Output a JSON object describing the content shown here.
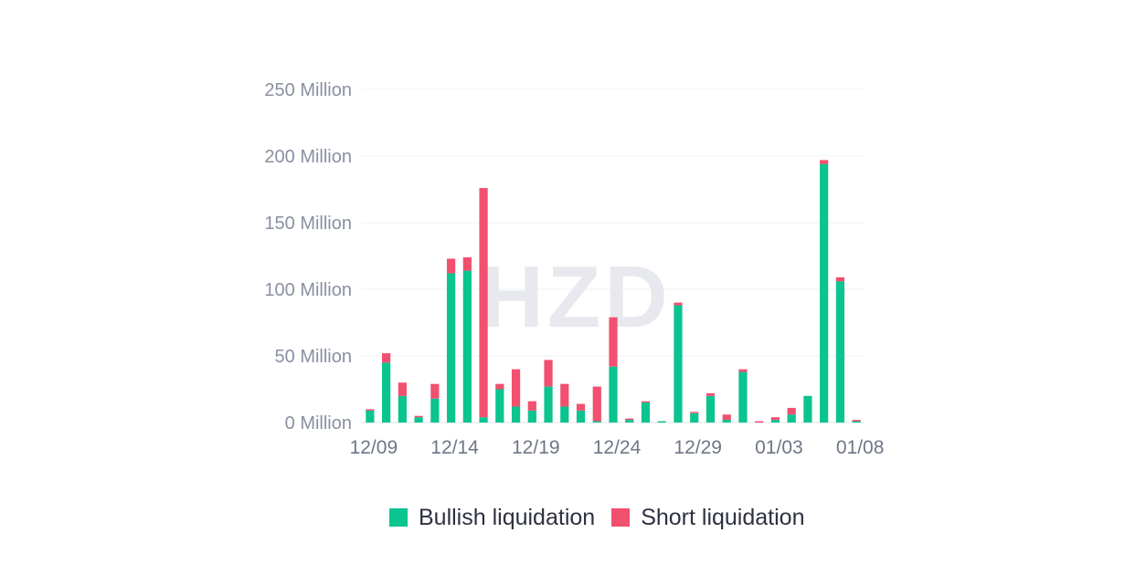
{
  "chart_data": {
    "type": "bar",
    "stacked": true,
    "watermark": "HZD",
    "y_ticks": [
      "0 Million",
      "50 Million",
      "100 Million",
      "150 Million",
      "200 Million",
      "250 Million"
    ],
    "ylim": [
      0,
      250
    ],
    "x_ticks": [
      "12/09",
      "12/14",
      "12/19",
      "12/24",
      "12/29",
      "01/03",
      "01/08"
    ],
    "categories": [
      "12/09",
      "12/10",
      "12/11",
      "12/12",
      "12/13",
      "12/14",
      "12/15",
      "12/16",
      "12/17",
      "12/18",
      "12/19",
      "12/20",
      "12/21",
      "12/22",
      "12/23",
      "12/24",
      "12/25",
      "12/26",
      "12/27",
      "12/28",
      "12/29",
      "12/30",
      "12/31",
      "01/01",
      "01/02",
      "01/03",
      "01/04",
      "01/05",
      "01/06",
      "01/07",
      "01/08"
    ],
    "series": [
      {
        "name": "Bullish liquidation",
        "color": "#0bc490",
        "values": [
          9,
          45,
          20,
          4,
          18,
          112,
          114,
          4,
          25,
          12,
          9,
          27,
          12,
          9,
          1,
          42,
          2,
          15,
          1,
          88,
          7,
          20,
          2,
          38,
          0,
          2,
          6,
          20,
          194,
          106,
          1
        ]
      },
      {
        "name": "Short liquidation",
        "color": "#f1506f",
        "values": [
          1,
          7,
          10,
          1,
          11,
          11,
          10,
          172,
          4,
          28,
          7,
          20,
          17,
          5,
          26,
          37,
          1,
          1,
          0,
          2,
          1,
          2,
          4,
          2,
          1,
          2,
          5,
          0,
          3,
          3,
          1
        ]
      }
    ],
    "grid": true,
    "legend_position": "bottom-center"
  },
  "legend": {
    "bullish_label": "Bullish liquidation",
    "short_label": "Short liquidation"
  }
}
